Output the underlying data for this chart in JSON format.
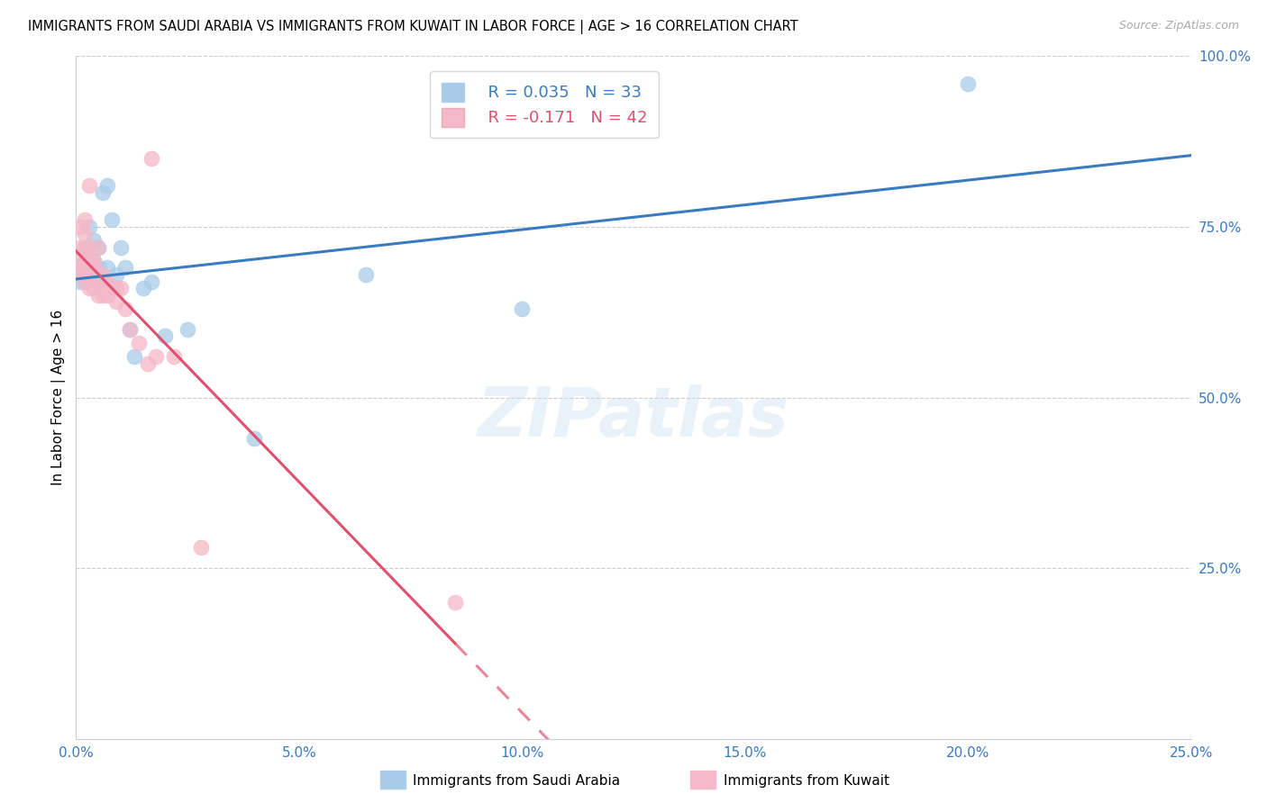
{
  "title": "IMMIGRANTS FROM SAUDI ARABIA VS IMMIGRANTS FROM KUWAIT IN LABOR FORCE | AGE > 16 CORRELATION CHART",
  "source": "Source: ZipAtlas.com",
  "ylabel": "In Labor Force | Age > 16",
  "xaxis_label_saudi": "Immigrants from Saudi Arabia",
  "xaxis_label_kuwait": "Immigrants from Kuwait",
  "xlim": [
    0.0,
    0.25
  ],
  "ylim": [
    0.0,
    1.0
  ],
  "xtick_labels": [
    "0.0%",
    "5.0%",
    "10.0%",
    "15.0%",
    "20.0%",
    "25.0%"
  ],
  "xtick_values": [
    0.0,
    0.05,
    0.1,
    0.15,
    0.2,
    0.25
  ],
  "ytick_labels_right": [
    "100.0%",
    "75.0%",
    "50.0%",
    "25.0%"
  ],
  "ytick_values_right": [
    1.0,
    0.75,
    0.5,
    0.25
  ],
  "background_color": "#ffffff",
  "grid_color": "#cccccc",
  "blue_color": "#a8cce8",
  "pink_color": "#f4b8c8",
  "blue_line_color": "#3a7abf",
  "pink_line_color": "#e05070",
  "watermark": "ZIPatlas",
  "legend_R_blue": "R = 0.035",
  "legend_N_blue": "N = 33",
  "legend_R_pink": "R = -0.171",
  "legend_N_pink": "N = 42",
  "saudi_x": [
    0.001,
    0.001,
    0.001,
    0.002,
    0.002,
    0.002,
    0.002,
    0.003,
    0.003,
    0.003,
    0.004,
    0.004,
    0.004,
    0.005,
    0.005,
    0.005,
    0.006,
    0.007,
    0.007,
    0.008,
    0.009,
    0.01,
    0.011,
    0.012,
    0.013,
    0.015,
    0.017,
    0.02,
    0.025,
    0.04,
    0.065,
    0.1,
    0.2
  ],
  "saudi_y": [
    0.67,
    0.68,
    0.69,
    0.67,
    0.68,
    0.7,
    0.72,
    0.68,
    0.7,
    0.75,
    0.68,
    0.7,
    0.73,
    0.67,
    0.69,
    0.72,
    0.8,
    0.81,
    0.69,
    0.76,
    0.68,
    0.72,
    0.69,
    0.6,
    0.56,
    0.66,
    0.67,
    0.59,
    0.6,
    0.44,
    0.68,
    0.63,
    0.96
  ],
  "kuwait_x": [
    0.001,
    0.001,
    0.001,
    0.001,
    0.001,
    0.002,
    0.002,
    0.002,
    0.002,
    0.002,
    0.002,
    0.003,
    0.003,
    0.003,
    0.003,
    0.003,
    0.004,
    0.004,
    0.004,
    0.004,
    0.005,
    0.005,
    0.005,
    0.005,
    0.006,
    0.006,
    0.006,
    0.007,
    0.007,
    0.008,
    0.009,
    0.009,
    0.01,
    0.011,
    0.012,
    0.014,
    0.016,
    0.017,
    0.018,
    0.022,
    0.028,
    0.085
  ],
  "kuwait_y": [
    0.68,
    0.69,
    0.7,
    0.72,
    0.75,
    0.67,
    0.68,
    0.7,
    0.72,
    0.74,
    0.76,
    0.66,
    0.68,
    0.7,
    0.72,
    0.81,
    0.66,
    0.68,
    0.69,
    0.7,
    0.65,
    0.67,
    0.68,
    0.72,
    0.65,
    0.67,
    0.68,
    0.65,
    0.67,
    0.66,
    0.64,
    0.66,
    0.66,
    0.63,
    0.6,
    0.58,
    0.55,
    0.85,
    0.56,
    0.56,
    0.28,
    0.2
  ]
}
